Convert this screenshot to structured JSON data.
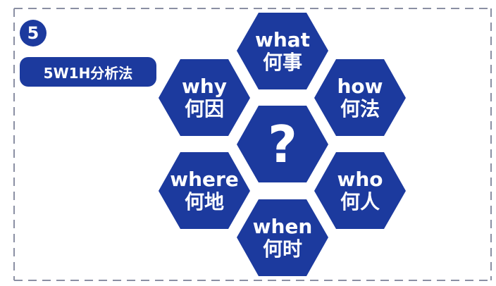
{
  "step_number": "5",
  "method_label": "5W1H分析法",
  "colors": {
    "hexagon_fill": "#1c3a9e",
    "text": "#ffffff",
    "dashed_border": "#8a8fa3"
  },
  "center": {
    "symbol": "?"
  },
  "hexagons": {
    "what": {
      "en": "what",
      "zh": "何事"
    },
    "why": {
      "en": "why",
      "zh": "何因"
    },
    "how": {
      "en": "how",
      "zh": "何法"
    },
    "where": {
      "en": "where",
      "zh": "何地"
    },
    "who": {
      "en": "who",
      "zh": "何人"
    },
    "when": {
      "en": "when",
      "zh": "何时"
    }
  }
}
